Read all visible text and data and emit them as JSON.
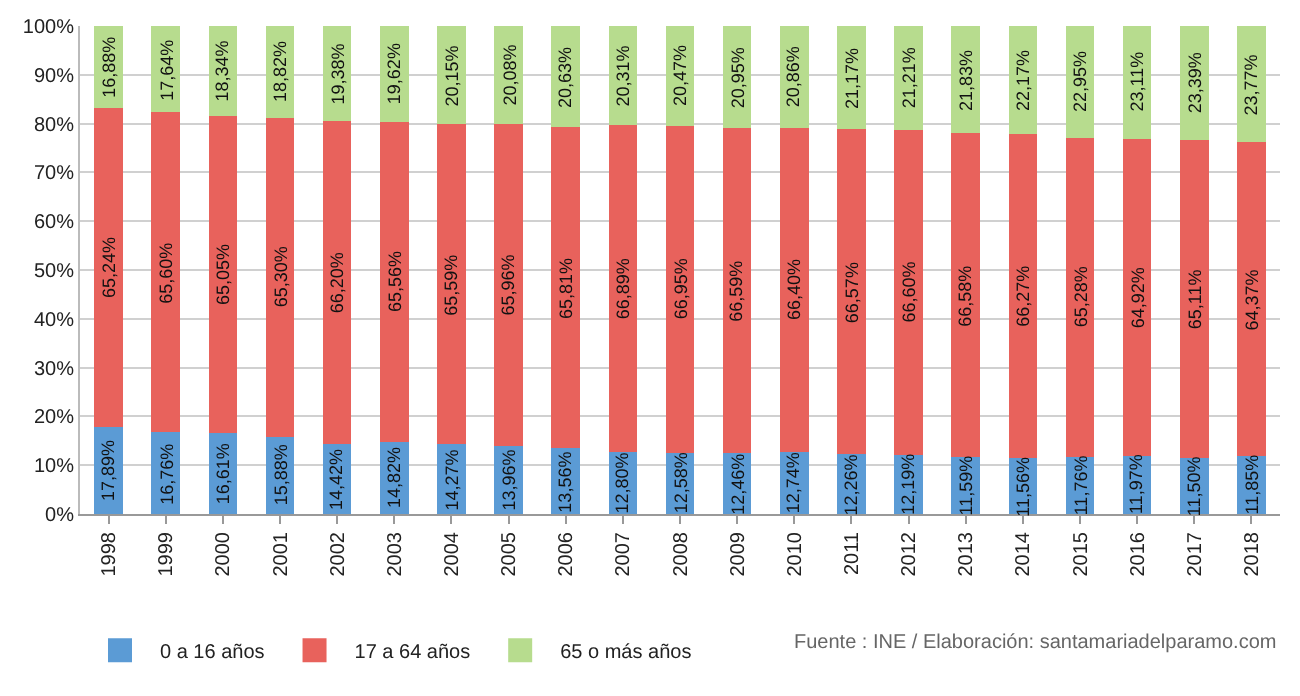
{
  "chart_data": {
    "type": "bar",
    "stacked": true,
    "categories": [
      "1998",
      "1999",
      "2000",
      "2001",
      "2002",
      "2003",
      "2004",
      "2005",
      "2006",
      "2007",
      "2008",
      "2009",
      "2010",
      "2011",
      "2012",
      "2013",
      "2014",
      "2015",
      "2016",
      "2017",
      "2018"
    ],
    "series": [
      {
        "name": "0 a 16 años",
        "color": "#5b9bd5",
        "values": [
          17.89,
          16.76,
          16.61,
          15.88,
          14.42,
          14.82,
          14.27,
          13.96,
          13.56,
          12.8,
          12.58,
          12.46,
          12.74,
          12.26,
          12.19,
          11.59,
          11.56,
          11.76,
          11.97,
          11.5,
          11.85
        ],
        "value_labels": [
          "17,89%",
          "16,76%",
          "16,61%",
          "15,88%",
          "14,42%",
          "14,82%",
          "14,27%",
          "13,96%",
          "13,56%",
          "12,80%",
          "12,58%",
          "12,46%",
          "12,74%",
          "12,26%",
          "12,19%",
          "11,59%",
          "11,56%",
          "11,76%",
          "11,97%",
          "11,50%",
          "11,85%"
        ]
      },
      {
        "name": "17 a 64 años",
        "color": "#e8625c",
        "values": [
          65.24,
          65.6,
          65.05,
          65.3,
          66.2,
          65.56,
          65.59,
          65.96,
          65.81,
          66.89,
          66.95,
          66.59,
          66.4,
          66.57,
          66.6,
          66.58,
          66.27,
          65.28,
          64.92,
          65.11,
          64.37
        ],
        "value_labels": [
          "65,24%",
          "65,60%",
          "65,05%",
          "65,30%",
          "66,20%",
          "65,56%",
          "65,59%",
          "65,96%",
          "65,81%",
          "66,89%",
          "66,95%",
          "66,59%",
          "66,40%",
          "66,57%",
          "66,60%",
          "66,58%",
          "66,27%",
          "65,28%",
          "64,92%",
          "65,11%",
          "64,37%"
        ]
      },
      {
        "name": "65 o más años",
        "color": "#b7dc8e",
        "values": [
          16.88,
          17.64,
          18.34,
          18.82,
          19.38,
          19.62,
          20.15,
          20.08,
          20.63,
          20.31,
          20.47,
          20.95,
          20.86,
          21.17,
          21.21,
          21.83,
          22.17,
          22.95,
          23.11,
          23.39,
          23.77
        ],
        "value_labels": [
          "16,88%",
          "17,64%",
          "18,34%",
          "18,82%",
          "19,38%",
          "19,62%",
          "20,15%",
          "20,08%",
          "20,63%",
          "20,31%",
          "20,47%",
          "20,95%",
          "20,86%",
          "21,17%",
          "21,21%",
          "21,83%",
          "22,17%",
          "22,95%",
          "23,11%",
          "23,39%",
          "23,77%"
        ]
      }
    ],
    "ylim": [
      0,
      100
    ],
    "yticks": [
      {
        "value": 0,
        "label": "0%"
      },
      {
        "value": 10,
        "label": "10%"
      },
      {
        "value": 20,
        "label": "20%"
      },
      {
        "value": 30,
        "label": "30%"
      },
      {
        "value": 40,
        "label": "40%"
      },
      {
        "value": 50,
        "label": "50%"
      },
      {
        "value": 60,
        "label": "60%"
      },
      {
        "value": 70,
        "label": "70%"
      },
      {
        "value": 80,
        "label": "80%"
      },
      {
        "value": 90,
        "label": "90%"
      },
      {
        "value": 100,
        "label": "100%"
      }
    ],
    "grid": "y",
    "legend": "bottom left",
    "annotations": [
      "Fuente : INE / Elaboración: santamariadelparamo.com"
    ]
  }
}
